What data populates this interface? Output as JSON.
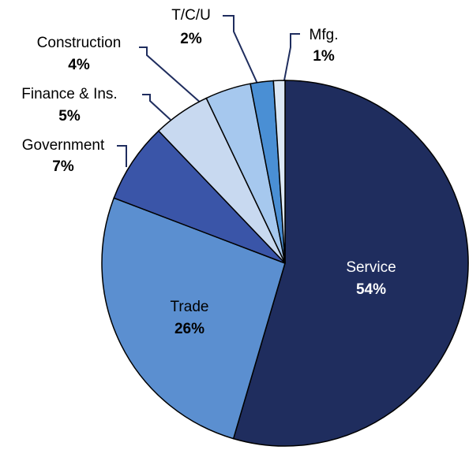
{
  "chart_data": {
    "type": "pie",
    "categories": [
      "Service",
      "Trade",
      "Government",
      "Finance & Ins.",
      "Construction",
      "T/C/U",
      "Mfg."
    ],
    "values": [
      54,
      26,
      7,
      5,
      4,
      2,
      1
    ],
    "value_labels": [
      "54%",
      "26%",
      "7%",
      "5%",
      "4%",
      "2%",
      "1%"
    ],
    "colors": [
      "#1f2d5e",
      "#5b8fd0",
      "#3a55a8",
      "#c8d9f0",
      "#a6c8ee",
      "#4a8fd4",
      "#dce8f5"
    ]
  }
}
